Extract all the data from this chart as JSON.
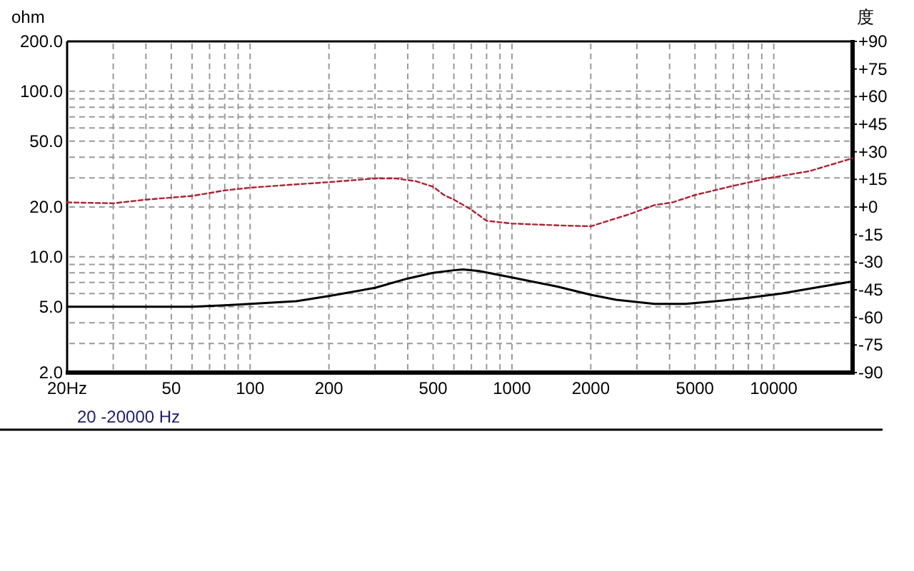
{
  "chart_data": {
    "type": "line",
    "ylabel": "ohm",
    "y2label": "度",
    "annotations": [
      "20 -20000 Hz"
    ],
    "log": "xy",
    "grid": true,
    "xlim": [
      20,
      20000
    ],
    "xticks": [
      {
        "value": 20,
        "label": "20Hz"
      },
      {
        "value": 30,
        "label": null
      },
      {
        "value": 40,
        "label": null
      },
      50,
      {
        "value": 60,
        "label": null
      },
      {
        "value": 70,
        "label": null
      },
      {
        "value": 80,
        "label": null
      },
      {
        "value": 90,
        "label": null
      },
      100,
      200,
      {
        "value": 300,
        "label": null
      },
      {
        "value": 400,
        "label": null
      },
      500,
      {
        "value": 600,
        "label": null
      },
      {
        "value": 700,
        "label": null
      },
      {
        "value": 800,
        "label": null
      },
      {
        "value": 900,
        "label": null
      },
      1000,
      2000,
      {
        "value": 3000,
        "label": null
      },
      {
        "value": 4000,
        "label": null
      },
      5000,
      {
        "value": 6000,
        "label": null
      },
      {
        "value": 7000,
        "label": null
      },
      {
        "value": 8000,
        "label": null
      },
      {
        "value": 9000,
        "label": null
      },
      10000
    ],
    "ylim": [
      2,
      200
    ],
    "yticks": [
      {
        "value": 2,
        "label": "2.0"
      },
      {
        "value": 3,
        "label": null
      },
      {
        "value": 4,
        "label": null
      },
      {
        "value": 5,
        "label": "5.0"
      },
      {
        "value": 6,
        "label": null
      },
      {
        "value": 7,
        "label": null
      },
      {
        "value": 8,
        "label": null
      },
      {
        "value": 9,
        "label": null
      },
      {
        "value": 10,
        "label": "10.0"
      },
      {
        "value": 20,
        "label": "20.0"
      },
      {
        "value": 30,
        "label": null
      },
      {
        "value": 40,
        "label": null
      },
      {
        "value": 50,
        "label": "50.0"
      },
      {
        "value": 60,
        "label": null
      },
      {
        "value": 70,
        "label": null
      },
      {
        "value": 80,
        "label": null
      },
      {
        "value": 90,
        "label": null
      },
      {
        "value": 100,
        "label": "100.0"
      },
      {
        "value": 200,
        "label": "200.0"
      }
    ],
    "y2lim": [
      -90,
      90
    ],
    "y2ticks": [
      {
        "value": 90,
        "label": "+90"
      },
      {
        "value": 75,
        "label": "+75"
      },
      {
        "value": 60,
        "label": "+60"
      },
      {
        "value": 45,
        "label": "+45"
      },
      {
        "value": 30,
        "label": "+30"
      },
      {
        "value": 15,
        "label": "+15"
      },
      {
        "value": 0,
        "label": "+0"
      },
      {
        "value": -15,
        "label": "-15"
      },
      {
        "value": -30,
        "label": "-30"
      },
      {
        "value": -45,
        "label": "-45"
      },
      {
        "value": -60,
        "label": "-60"
      },
      {
        "value": -75,
        "label": "-75"
      },
      {
        "value": -90,
        "label": "-90"
      }
    ],
    "series": [
      {
        "color": "#000000",
        "line_style": "solid",
        "x": [
          20,
          40,
          60,
          80,
          100,
          150,
          200,
          300,
          400,
          500,
          600,
          650,
          750,
          1000,
          1500,
          2000,
          2500,
          3500,
          4600,
          6000,
          7600,
          10700,
          14300,
          20000
        ],
        "values": [
          5.0,
          5.0,
          5.0,
          5.1,
          5.2,
          5.4,
          5.8,
          6.5,
          7.4,
          8.0,
          8.3,
          8.4,
          8.2,
          7.5,
          6.6,
          5.9,
          5.5,
          5.2,
          5.2,
          5.4,
          5.6,
          6.0,
          6.5,
          7.1
        ]
      },
      {
        "color": "#b02030",
        "line_style": "dashed",
        "axis": "y2",
        "x": [
          20,
          30,
          40,
          60,
          80,
          100,
          140,
          200,
          300,
          360,
          430,
          500,
          550,
          600,
          700,
          800,
          1000,
          1500,
          2000,
          2800,
          3500,
          4100,
          5000,
          7000,
          9400,
          13700,
          20000
        ],
        "values": [
          2.5,
          2,
          4,
          6,
          9,
          10.5,
          12,
          13.5,
          15.5,
          15.5,
          14,
          11,
          6.5,
          4,
          -1.5,
          -7.5,
          -9,
          -10,
          -10.5,
          -4,
          1,
          2.5,
          6.5,
          11.5,
          15.5,
          19.5,
          26.5
        ]
      }
    ]
  }
}
